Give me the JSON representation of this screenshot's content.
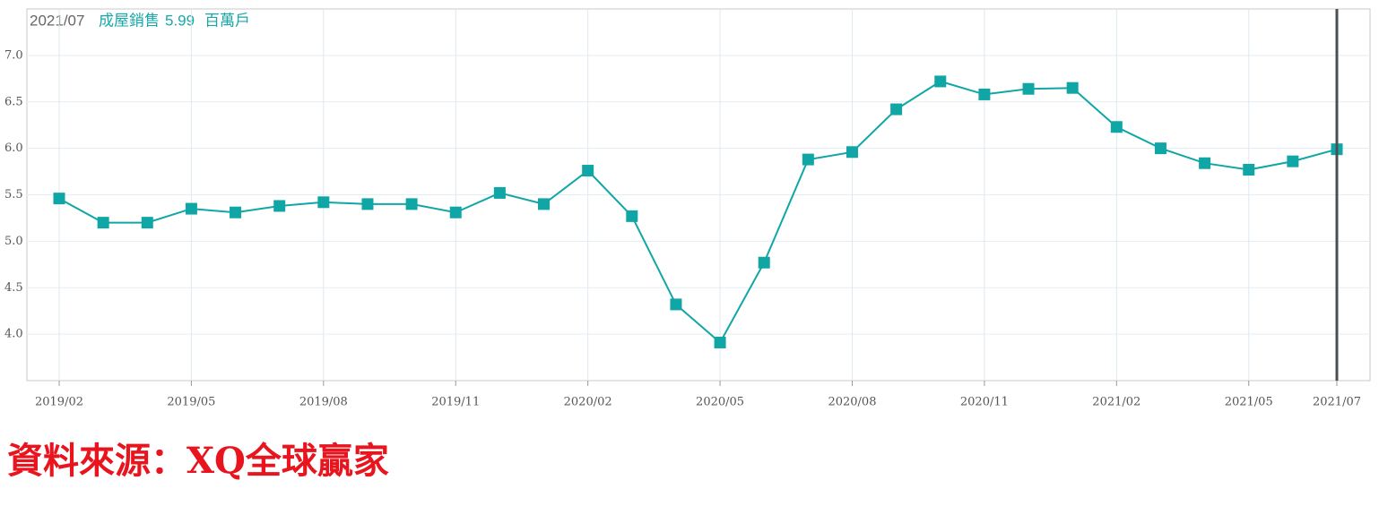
{
  "header": {
    "date": "2021/07",
    "label": "成屋銷售",
    "value": 5.99,
    "unit": "百萬戶"
  },
  "source": "資料來源：XQ全球贏家",
  "chart_data": {
    "type": "line",
    "categories": [
      "2019/02",
      null,
      null,
      "2019/05",
      null,
      null,
      "2019/08",
      null,
      null,
      "2019/11",
      null,
      null,
      "2020/02",
      null,
      null,
      "2020/05",
      null,
      null,
      "2020/08",
      null,
      null,
      "2020/11",
      null,
      null,
      "2021/02",
      null,
      null,
      "2021/05",
      null,
      "2021/07"
    ],
    "series": [
      {
        "name": "成屋銷售",
        "color": "#11a6a6",
        "values": [
          5.46,
          5.2,
          5.2,
          5.35,
          5.31,
          5.38,
          5.42,
          5.4,
          5.4,
          5.31,
          5.52,
          5.4,
          5.76,
          5.27,
          4.32,
          3.91,
          4.77,
          5.88,
          5.96,
          6.42,
          6.72,
          6.58,
          6.64,
          6.65,
          6.23,
          6.0,
          5.84,
          5.77,
          5.86,
          5.99
        ]
      }
    ],
    "ylim": [
      3.5,
      7.5
    ],
    "yticks": [
      {
        "value": 4,
        "label": "4.0"
      },
      {
        "value": 4.5,
        "label": "4.5"
      },
      {
        "value": 5,
        "label": "5.0"
      },
      {
        "value": 5.5,
        "label": "5.5"
      },
      {
        "value": 6,
        "label": "6.0"
      },
      {
        "value": 6.5,
        "label": "6.5"
      },
      {
        "value": 7,
        "label": "7.0"
      }
    ],
    "grid": true
  }
}
